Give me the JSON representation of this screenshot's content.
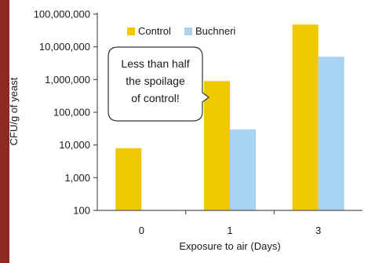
{
  "chart_data": {
    "type": "bar",
    "title": "",
    "xlabel": "Exposure to air (Days)",
    "ylabel": "CFU/g of yeast",
    "y_scale": "log",
    "ylim": [
      100,
      100000000
    ],
    "y_ticks": [
      "100",
      "1,000",
      "10,000",
      "100,000",
      "1,000,000",
      "10,000,000",
      "100,000,000"
    ],
    "categories": [
      "0",
      "1",
      "3"
    ],
    "series": [
      {
        "name": "Control",
        "color": "#f0c800",
        "values": [
          8000,
          900000,
          48000000
        ]
      },
      {
        "name": "Buchneri",
        "color": "#a8d4f2",
        "values": [
          null,
          30000,
          5000000
        ]
      }
    ],
    "legend_position": "top-left",
    "grid": false,
    "annotation": {
      "lines": [
        "Less than half",
        "the spoilage",
        "of control!"
      ]
    }
  }
}
